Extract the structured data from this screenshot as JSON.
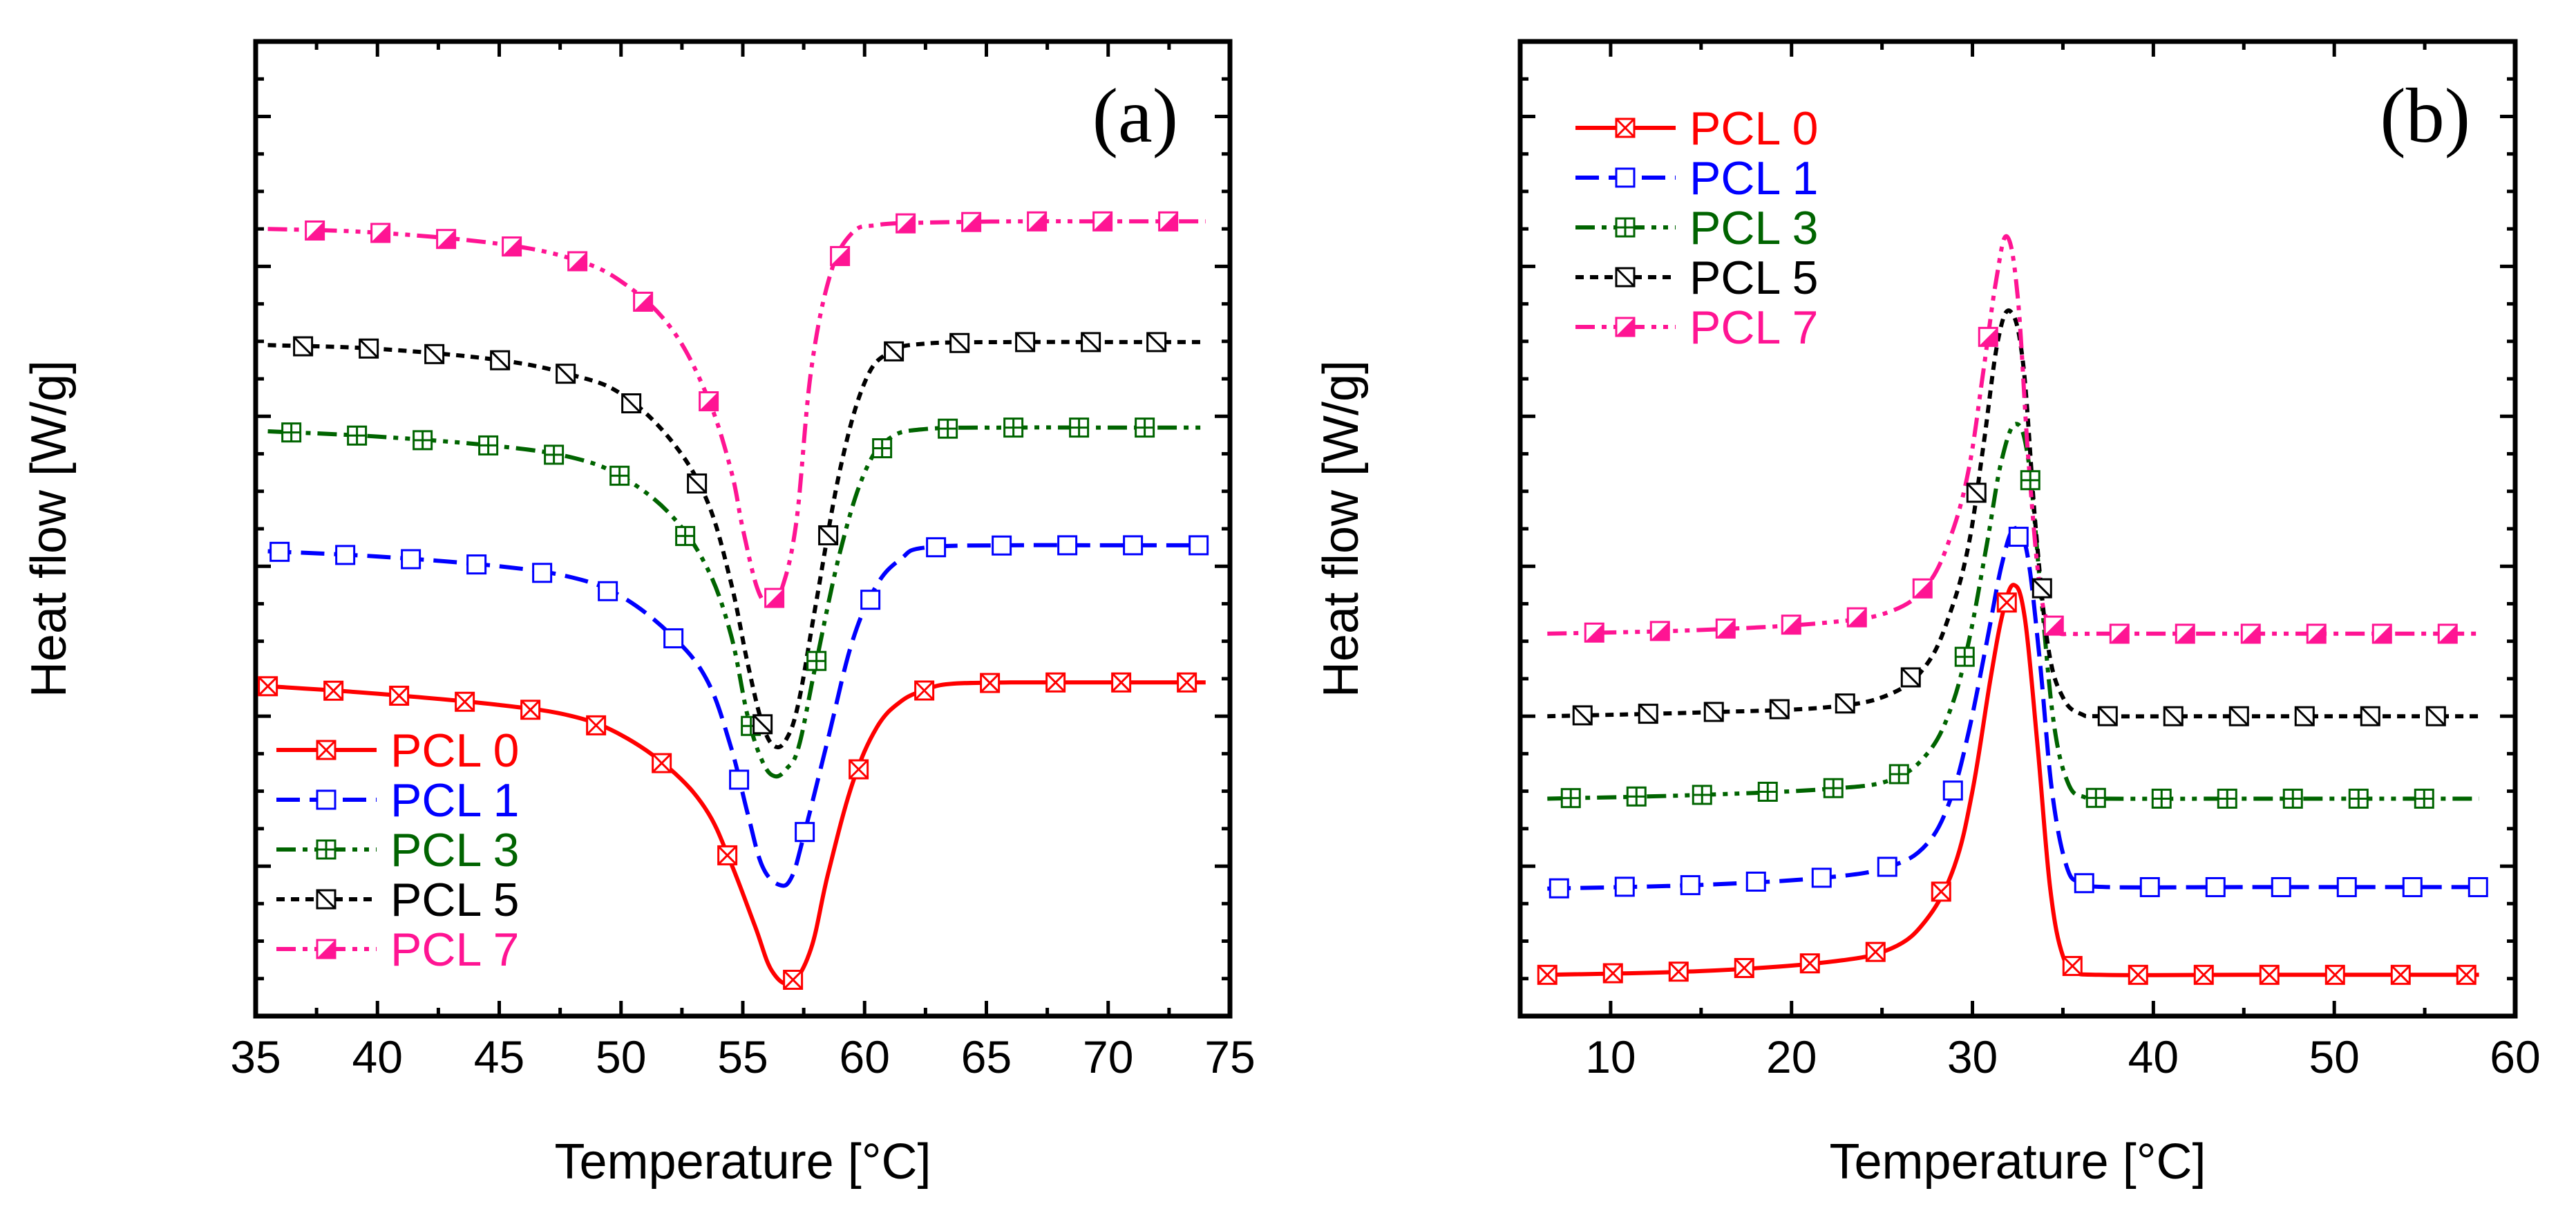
{
  "chart_data": [
    {
      "type": "line",
      "panel_label": "(a)",
      "title": "",
      "xlabel": "Temperature [°C]",
      "ylabel": "Heat flow [W/g]",
      "xlim": [
        35,
        75
      ],
      "ylim": [
        0,
        13
      ],
      "xticks": [
        35,
        40,
        45,
        50,
        55,
        60,
        65,
        70,
        75
      ],
      "xtick_labels": [
        "35",
        "40",
        "45",
        "50",
        "55",
        "60",
        "65",
        "70",
        "75"
      ],
      "y_tick_labels_shown": false,
      "grid": false,
      "legend_position": "bottom-left",
      "series": [
        {
          "name": "PCL 0",
          "color": "#ff0000",
          "line_style": "solid",
          "marker": "box-x",
          "x": [
            35.5,
            40,
            45,
            48,
            50,
            52,
            53.5,
            54.5,
            55.5,
            56.2,
            57,
            57.8,
            58.5,
            59.5,
            60.5,
            61.5,
            62.5,
            63.5,
            66,
            70,
            74
          ],
          "y": [
            4.4,
            4.3,
            4.15,
            4.0,
            3.75,
            3.3,
            2.75,
            2.05,
            1.2,
            0.6,
            0.45,
            0.9,
            1.9,
            3.1,
            3.85,
            4.2,
            4.35,
            4.43,
            4.45,
            4.45,
            4.45
          ]
        },
        {
          "name": "PCL 1",
          "color": "#0000ff",
          "line_style": "dash",
          "marker": "box",
          "x": [
            35.5,
            40,
            45,
            48,
            50,
            52,
            53.5,
            54.5,
            55.2,
            55.8,
            56.5,
            57,
            57.5,
            58.5,
            59.5,
            60.5,
            61.5,
            62.5,
            66,
            70,
            74
          ],
          "y": [
            6.2,
            6.13,
            6.0,
            5.85,
            5.6,
            5.1,
            4.5,
            3.6,
            2.7,
            2.0,
            1.75,
            1.85,
            2.4,
            3.7,
            5.0,
            5.75,
            6.1,
            6.25,
            6.28,
            6.28,
            6.28
          ]
        },
        {
          "name": "PCL 3",
          "color": "#006400",
          "line_style": "dash-dot-dot",
          "marker": "box-plus",
          "x": [
            35.5,
            40,
            45,
            48,
            50,
            52,
            53.5,
            54.5,
            55.2,
            55.8,
            56.3,
            56.8,
            57.3,
            58,
            59,
            60,
            61,
            62.5,
            66,
            70,
            74
          ],
          "y": [
            7.8,
            7.73,
            7.6,
            7.45,
            7.2,
            6.7,
            6.0,
            5.1,
            4.0,
            3.4,
            3.2,
            3.3,
            3.6,
            4.7,
            6.2,
            7.25,
            7.7,
            7.83,
            7.85,
            7.85,
            7.85
          ]
        },
        {
          "name": "PCL 5",
          "color": "#000000",
          "line_style": "dot",
          "marker": "box-slash",
          "x": [
            35.5,
            40,
            45,
            48,
            50,
            52,
            53.5,
            54.5,
            55.2,
            55.8,
            56.3,
            56.8,
            57.3,
            58,
            59,
            60,
            61,
            62.5,
            66,
            70,
            74
          ],
          "y": [
            8.95,
            8.9,
            8.75,
            8.55,
            8.3,
            7.7,
            6.9,
            5.8,
            4.7,
            3.9,
            3.6,
            3.7,
            4.2,
            5.5,
            7.3,
            8.45,
            8.85,
            8.97,
            8.99,
            8.99,
            8.99
          ]
        },
        {
          "name": "PCL 7",
          "color": "#ff1493",
          "line_style": "dash-dot-dot",
          "marker": "half-filled-box",
          "x": [
            35.5,
            40,
            45,
            48,
            50,
            52,
            53.5,
            54.5,
            55,
            55.6,
            56.1,
            56.6,
            57.2,
            57.8,
            58.6,
            59.5,
            60.5,
            62,
            66,
            70,
            74
          ],
          "y": [
            10.5,
            10.45,
            10.3,
            10.1,
            9.8,
            9.2,
            8.3,
            7.3,
            6.5,
            5.7,
            5.5,
            5.7,
            6.6,
            8.6,
            9.9,
            10.45,
            10.55,
            10.58,
            10.6,
            10.6,
            10.6
          ]
        }
      ]
    },
    {
      "type": "line",
      "panel_label": "(b)",
      "title": "",
      "xlabel": "Temperature [°C]",
      "ylabel": "Heat flow [W/g]",
      "xlim": [
        5,
        60
      ],
      "ylim": [
        0,
        13
      ],
      "xticks": [
        10,
        20,
        30,
        40,
        50,
        60
      ],
      "xtick_labels": [
        "10",
        "20",
        "30",
        "40",
        "50",
        "60"
      ],
      "y_tick_labels_shown": false,
      "grid": false,
      "legend_position": "top-left",
      "series": [
        {
          "name": "PCL 0",
          "color": "#ff0000",
          "line_style": "solid",
          "marker": "box-x",
          "x": [
            6.5,
            15,
            22,
            25.5,
            27.5,
            29,
            30,
            31,
            31.7,
            32.3,
            32.9,
            33.6,
            34.3,
            35,
            35.8,
            37,
            45,
            58
          ],
          "y": [
            0.55,
            0.6,
            0.72,
            0.9,
            1.3,
            2.0,
            3.0,
            4.5,
            5.4,
            5.75,
            5.3,
            3.6,
            1.7,
            0.8,
            0.6,
            0.55,
            0.55,
            0.55
          ]
        },
        {
          "name": "PCL 1",
          "color": "#0000ff",
          "line_style": "dash",
          "marker": "box",
          "x": [
            6.5,
            15,
            22,
            25.5,
            27.5,
            28.8,
            29.8,
            30.8,
            31.6,
            32.3,
            33,
            33.7,
            34.4,
            35.2,
            36,
            37.5,
            45,
            58
          ],
          "y": [
            1.7,
            1.75,
            1.85,
            2.0,
            2.3,
            2.9,
            3.8,
            5.0,
            6.0,
            6.5,
            6.2,
            4.8,
            3.0,
            2.0,
            1.78,
            1.72,
            1.72,
            1.72
          ]
        },
        {
          "name": "PCL 3",
          "color": "#006400",
          "line_style": "dash-dot-dot",
          "marker": "box-plus",
          "x": [
            6.5,
            15,
            22,
            25.5,
            27.5,
            28.8,
            29.8,
            30.8,
            31.6,
            32.4,
            33.1,
            33.8,
            34.5,
            35.3,
            36.2,
            37.5,
            45,
            58
          ],
          "y": [
            2.9,
            2.95,
            3.03,
            3.15,
            3.5,
            4.1,
            5.0,
            6.3,
            7.4,
            7.9,
            7.4,
            5.6,
            3.9,
            3.1,
            2.92,
            2.9,
            2.9,
            2.9
          ]
        },
        {
          "name": "PCL 5",
          "color": "#000000",
          "line_style": "dot",
          "marker": "box-slash",
          "x": [
            6.5,
            15,
            22,
            25.5,
            27.5,
            28.8,
            29.8,
            30.6,
            31.4,
            32.1,
            32.8,
            33.5,
            34.2,
            35,
            36,
            37.5,
            45,
            58
          ],
          "y": [
            4.0,
            4.05,
            4.12,
            4.3,
            4.7,
            5.4,
            6.3,
            7.6,
            9.0,
            9.4,
            8.7,
            6.5,
            4.9,
            4.25,
            4.03,
            4.0,
            4.0,
            4.0
          ]
        },
        {
          "name": "PCL 7",
          "color": "#ff1493",
          "line_style": "dash-dot-dot",
          "marker": "half-filled-box",
          "x": [
            6.5,
            15,
            22,
            25.5,
            27.5,
            28.8,
            29.8,
            30.6,
            31.3,
            31.9,
            32.5,
            33.1,
            33.8,
            34.6,
            35.5,
            37,
            45,
            58
          ],
          "y": [
            5.1,
            5.15,
            5.25,
            5.4,
            5.75,
            6.4,
            7.3,
            8.6,
            9.8,
            10.4,
            9.6,
            7.4,
            5.6,
            5.15,
            5.1,
            5.1,
            5.1,
            5.1
          ]
        }
      ]
    }
  ]
}
